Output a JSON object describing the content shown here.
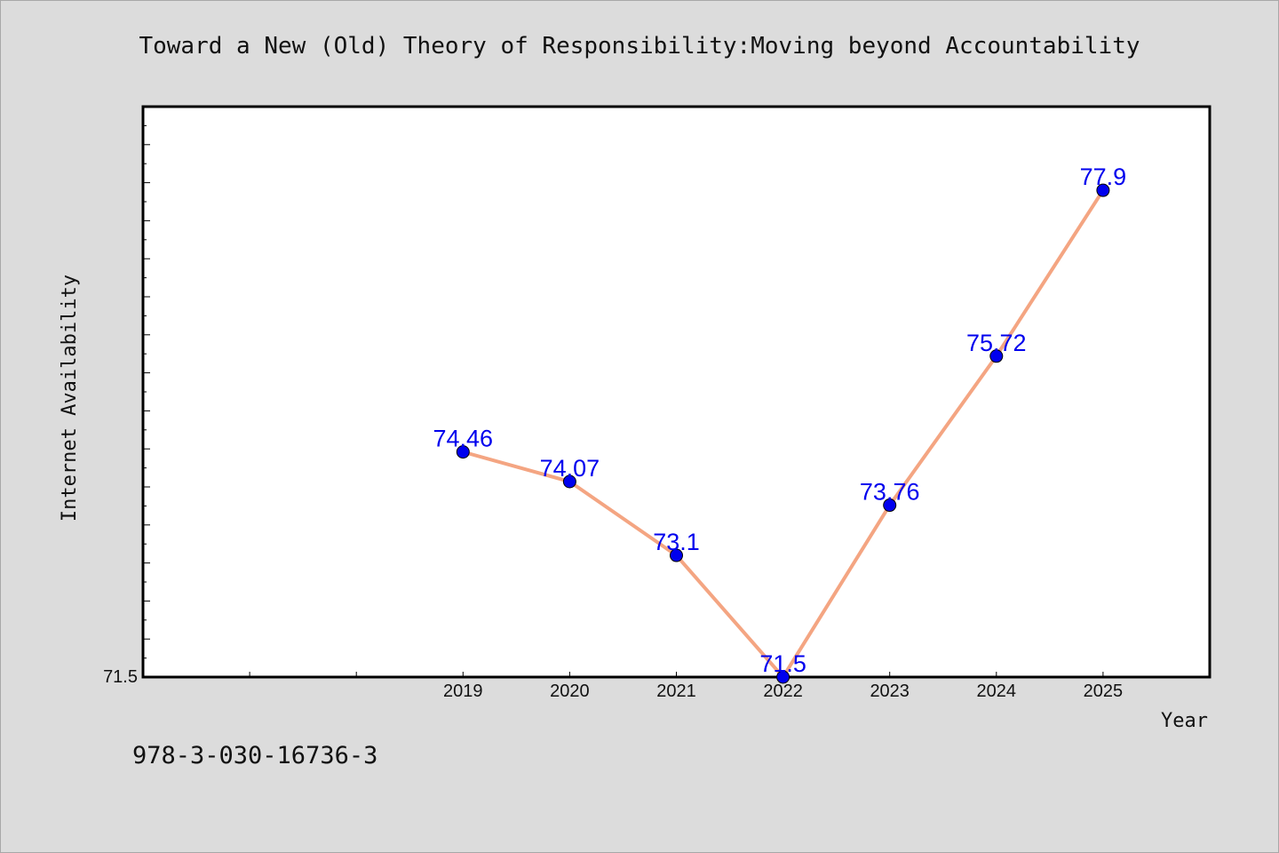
{
  "footer": {
    "code": "978-3-030-16736-3"
  },
  "chart_data": {
    "type": "line",
    "title": "Toward a New (Old) Theory of Responsibility:Moving beyond Accountability",
    "xlabel": "Year",
    "ylabel": "Internet Availability",
    "x": [
      "2019",
      "2020",
      "2021",
      "2022",
      "2023",
      "2024",
      "2025"
    ],
    "series": [
      {
        "values": [
          74.46,
          74.07,
          73.1,
          71.5,
          73.76,
          75.72,
          77.9
        ],
        "labels": [
          "74.46",
          "74.07",
          "73.1",
          "71.5",
          "73.76",
          "75.72",
          "77.9"
        ]
      }
    ],
    "ytick_label": "71.5",
    "ylim": [
      71.5,
      79.0
    ],
    "xlim": [
      2016,
      2026
    ],
    "grid": false,
    "colors": {
      "line": "#f4a582",
      "marker": "#0000ee",
      "data_label": "#0000ee",
      "plot_bg": "#ffffff",
      "page_bg": "#dcdcdc"
    }
  }
}
